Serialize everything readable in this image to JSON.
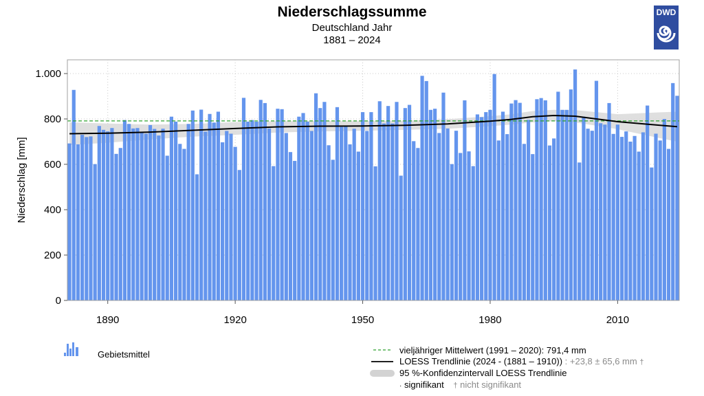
{
  "header": {
    "title": "Niederschlagssumme",
    "subtitle": "Deutschland Jahr",
    "period": "1881 – 2024",
    "logo_text": "DWD"
  },
  "colors": {
    "bar": "#6495ed",
    "mean_line": "#2ca02c",
    "trend_line": "#000000",
    "confidence_band": "#d9d9d9",
    "logo": "#2f4da0"
  },
  "chart_data": {
    "type": "bar",
    "title": "Niederschlagssumme",
    "xlabel": "",
    "ylabel": "Niederschlag [mm]",
    "ylim": [
      0,
      1060
    ],
    "xlim": [
      1880.5,
      2024.5
    ],
    "y_ticks": [
      0,
      200,
      400,
      600,
      800,
      1000
    ],
    "y_tick_labels": [
      "0",
      "200",
      "400",
      "600",
      "800",
      "1.000"
    ],
    "x_ticks": [
      1890,
      1920,
      1950,
      1980,
      2010
    ],
    "x_tick_labels": [
      "1890",
      "1920",
      "1950",
      "1980",
      "2010"
    ],
    "grid": true,
    "x_start": 1881,
    "series": [
      {
        "name": "Gebietsmittel",
        "type": "bar",
        "values": [
          692,
          928,
          688,
          730,
          720,
          723,
          601,
          769,
          752,
          745,
          760,
          646,
          672,
          795,
          778,
          758,
          760,
          744,
          735,
          773,
          756,
          727,
          757,
          638,
          810,
          788,
          690,
          668,
          778,
          837,
          556,
          841,
          744,
          822,
          784,
          832,
          697,
          747,
          735,
          677,
          575,
          893,
          788,
          795,
          788,
          884,
          870,
          758,
          592,
          845,
          843,
          738,
          654,
          615,
          810,
          826,
          788,
          747,
          913,
          848,
          875,
          684,
          620,
          852,
          765,
          768,
          688,
          757,
          656,
          830,
          747,
          830,
          591,
          878,
          780,
          857,
          780,
          875,
          550,
          848,
          862,
          702,
          672,
          990,
          967,
          840,
          845,
          738,
          916,
          758,
          601,
          748,
          650,
          882,
          657,
          592,
          820,
          808,
          830,
          840,
          998,
          705,
          832,
          733,
          868,
          883,
          871,
          690,
          796,
          645,
          887,
          892,
          882,
          683,
          714,
          920,
          840,
          840,
          930,
          1018,
          608,
          810,
          757,
          748,
          968,
          781,
          775,
          870,
          734,
          775,
          721,
          745,
          700,
          725,
          656,
          741,
          859,
          586,
          735,
          705,
          800,
          668,
          958,
          902
        ]
      },
      {
        "name": "vieljähriger Mittelwert (1991 – 2020)",
        "type": "hline",
        "value": 791.4,
        "x_range": [
          1881,
          2024
        ]
      },
      {
        "name": "LOESS Trendlinie",
        "type": "line",
        "x": [
          1881,
          1890,
          1900,
          1910,
          1920,
          1930,
          1940,
          1950,
          1960,
          1970,
          1980,
          1985,
          1990,
          1995,
          2000,
          2005,
          2010,
          2015,
          2020,
          2024
        ],
        "values": [
          735,
          737,
          742,
          750,
          758,
          765,
          768,
          769,
          772,
          778,
          790,
          798,
          810,
          815,
          812,
          800,
          788,
          780,
          772,
          766
        ]
      },
      {
        "name": "95 %-Konfidenzintervall LOESS Trendlinie",
        "type": "band",
        "x": [
          1881,
          1890,
          1900,
          1910,
          1920,
          1930,
          1940,
          1950,
          1960,
          1970,
          1980,
          1985,
          1990,
          1995,
          2000,
          2005,
          2010,
          2015,
          2020,
          2024
        ],
        "lower": [
          685,
          695,
          710,
          722,
          730,
          740,
          745,
          748,
          752,
          757,
          768,
          775,
          785,
          790,
          785,
          770,
          755,
          735,
          715,
          700
        ],
        "upper": [
          785,
          780,
          775,
          778,
          786,
          790,
          791,
          790,
          792,
          799,
          812,
          821,
          835,
          840,
          839,
          830,
          821,
          825,
          829,
          832
        ]
      }
    ]
  },
  "legend": {
    "bars_label": "Gebietsmittel",
    "mean_label": "vieljähriger Mittelwert (1991 – 2020): 791,4 mm",
    "trend_label": "LOESS Trendlinie (2024 - (1881 – 1910))",
    "trend_value": " : +23,8 ± 65,6 mm",
    "trend_marker": "†",
    "band_label": "95 %-Konfidenzintervall LOESS Trendlinie",
    "sig_marker": "·",
    "sig_label": "signifikant",
    "nonsig_marker": "†",
    "nonsig_label": "nicht signifikant"
  }
}
